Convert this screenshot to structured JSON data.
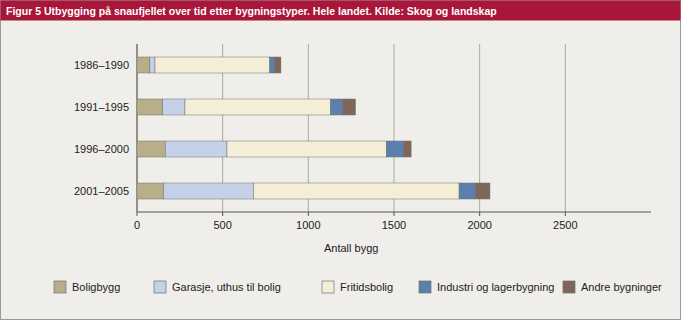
{
  "chart_data": {
    "type": "bar",
    "orientation": "horizontal",
    "stacked": true,
    "grid": true,
    "legend": "bottom",
    "title": "Figur 5 Utbygging på snaufjellet over tid etter bygningstyper. Hele landet. Kilde: Skog og landskap",
    "x_label": "Antall bygg",
    "categories": [
      "1986–1990",
      "1991–1995",
      "1996–2000",
      "2001–2005"
    ],
    "series": [
      {
        "name": "Boligbygg",
        "color": "#b9ae8a",
        "values": [
          75,
          150,
          165,
          155
        ]
      },
      {
        "name": "Garasje, uthus til bolig",
        "color": "#c4d1e8",
        "values": [
          30,
          130,
          360,
          525
        ]
      },
      {
        "name": "Fritidsbolig",
        "color": "#f4eed6",
        "values": [
          670,
          850,
          930,
          1200
        ]
      },
      {
        "name": "Industri og lagerbygning",
        "color": "#5b80ae",
        "values": [
          30,
          70,
          100,
          95
        ]
      },
      {
        "name": "Andre bygninger",
        "color": "#7e6759",
        "values": [
          35,
          75,
          45,
          85
        ]
      }
    ],
    "xlim": [
      0,
      3000
    ],
    "xticks": [
      0,
      500,
      1000,
      1500,
      2000,
      2500
    ]
  }
}
